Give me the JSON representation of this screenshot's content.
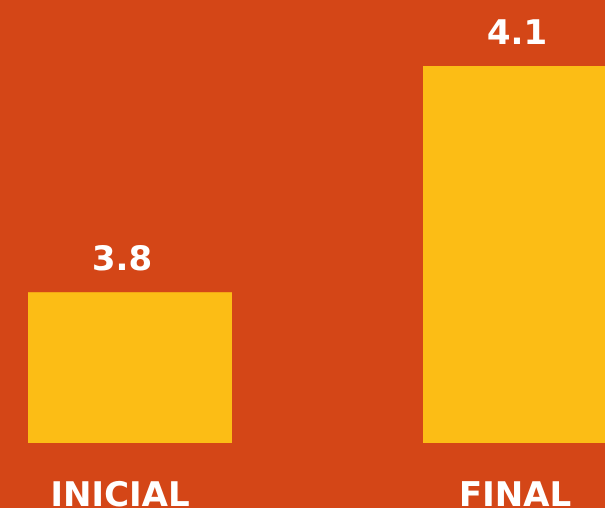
{
  "colors": {
    "background": "#d44617",
    "bar": "#fcbd15",
    "text": "#ffffff"
  },
  "chart_data": {
    "type": "bar",
    "categories": [
      "INICIAL",
      "FINAL"
    ],
    "values": [
      3.8,
      4.1
    ],
    "value_labels": [
      "3.8",
      "4.1"
    ],
    "title": "",
    "xlabel": "",
    "ylabel": "",
    "ylim": [
      3.6,
      4.1
    ],
    "grid": false,
    "legend": "none"
  }
}
